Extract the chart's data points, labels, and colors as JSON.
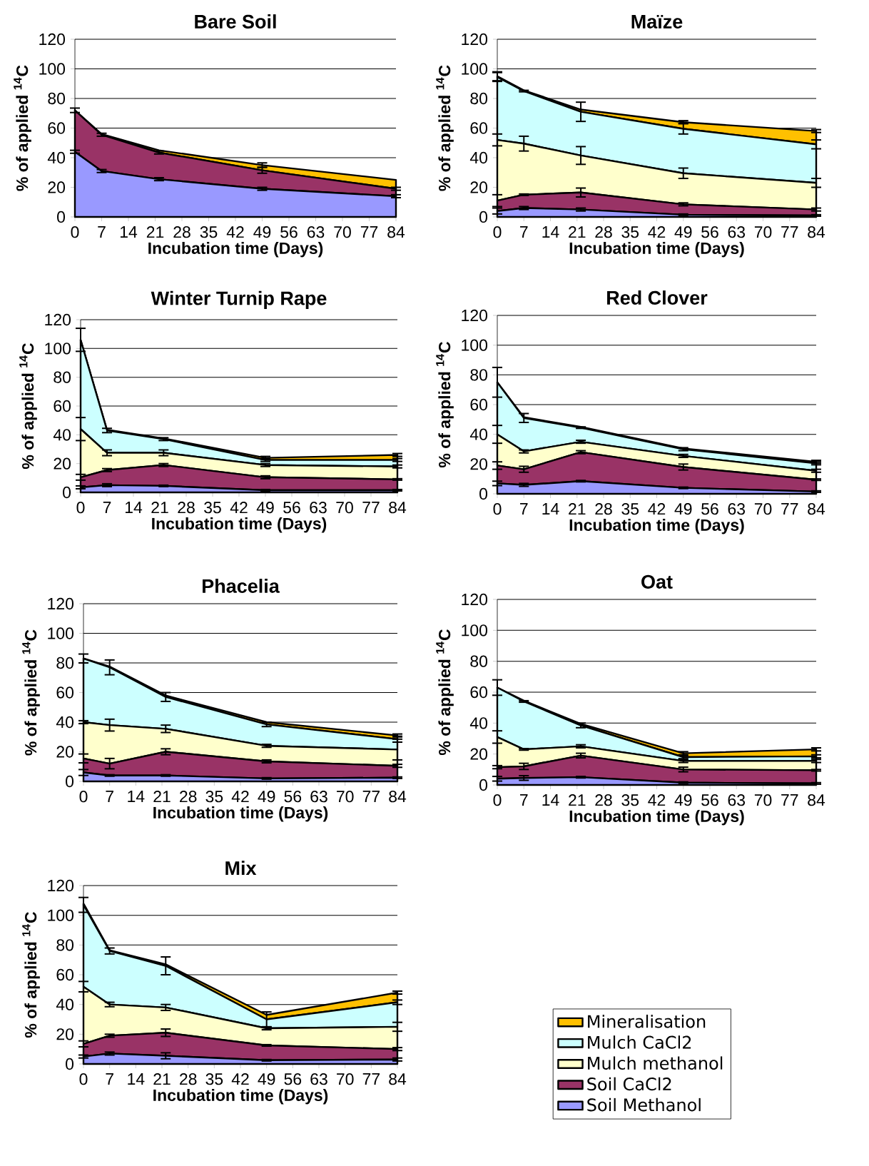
{
  "chart_data": [
    {
      "type": "area",
      "stacked": true,
      "title": "Bare Soil",
      "xlabel": "Incubation time (Days)",
      "ylabel": "% of applied $^{14}$C",
      "x": [
        0,
        7,
        22,
        49,
        84
      ],
      "xlim": [
        0,
        84
      ],
      "xticks": [
        0,
        7,
        14,
        21,
        28,
        35,
        42,
        49,
        56,
        63,
        70,
        77,
        84
      ],
      "ylim": [
        0,
        120
      ],
      "yticks": [
        0,
        20,
        40,
        60,
        80,
        100,
        120
      ],
      "grid": "y",
      "series": [
        {
          "color": "#9999ff",
          "values": [
            44,
            31,
            25.5,
            19,
            14
          ],
          "errors": [
            1,
            1,
            1,
            1,
            1
          ]
        },
        {
          "color": "#993366",
          "values": [
            28,
            24.5,
            18,
            12.5,
            5
          ],
          "errors": [
            1.5,
            1,
            1,
            2,
            1
          ]
        },
        {
          "color": "#ffc000",
          "values": [
            0,
            0.5,
            1.5,
            3.5,
            6
          ],
          "errors": [
            null,
            null,
            null,
            1.5,
            null
          ]
        }
      ]
    },
    {
      "type": "area",
      "stacked": true,
      "title": "Maïze",
      "xlabel": "Incubation time (Days)",
      "ylabel": "% of applied $^{14}$C",
      "x": [
        0,
        7,
        22,
        49,
        84
      ],
      "xlim": [
        0,
        84
      ],
      "xticks": [
        0,
        7,
        14,
        21,
        28,
        35,
        42,
        49,
        56,
        63,
        70,
        77,
        84
      ],
      "ylim": [
        0,
        120
      ],
      "yticks": [
        0,
        20,
        40,
        60,
        80,
        100,
        120
      ],
      "grid": "y",
      "series": [
        {
          "color": "#9999ff",
          "values": [
            4,
            6,
            5,
            1.5,
            1
          ],
          "errors": [
            2,
            1,
            1,
            0.5,
            0.5
          ]
        },
        {
          "color": "#993366",
          "values": [
            7,
            9,
            11.5,
            7,
            4
          ],
          "errors": [
            4,
            0.5,
            3,
            1,
            1
          ]
        },
        {
          "color": "#ffffcc",
          "values": [
            41,
            34.5,
            25,
            21,
            18
          ],
          "errors": [
            4,
            5,
            6,
            3.5,
            3
          ]
        },
        {
          "color": "#ccffff",
          "values": [
            42.5,
            35.5,
            29.5,
            30,
            26
          ],
          "errors": [
            3,
            0.5,
            6.5,
            3.5,
            3
          ]
        },
        {
          "color": "#ffc000",
          "values": [
            0.5,
            0.5,
            1.5,
            4.5,
            9
          ],
          "errors": [
            3,
            null,
            null,
            1,
            1
          ]
        }
      ]
    },
    {
      "type": "area",
      "stacked": true,
      "title": "Winter Turnip Rape",
      "xlabel": "Incubation time (Days)",
      "ylabel": "% of applied $^{14}$C",
      "x": [
        0,
        7,
        22,
        49,
        84
      ],
      "xlim": [
        0,
        84
      ],
      "xticks": [
        0,
        7,
        14,
        21,
        28,
        35,
        42,
        49,
        56,
        63,
        70,
        77,
        84
      ],
      "ylim": [
        0,
        120
      ],
      "yticks": [
        0,
        20,
        40,
        60,
        80,
        100,
        120
      ],
      "grid": "y",
      "series": [
        {
          "color": "#9999ff",
          "values": [
            3.5,
            5,
            4.5,
            1.5,
            1.5
          ],
          "errors": [
            1,
            1,
            0.5,
            0.5,
            0.5
          ]
        },
        {
          "color": "#993366",
          "values": [
            7,
            10.5,
            14.5,
            9,
            7.5
          ],
          "errors": [
            2,
            1,
            1,
            1,
            0.5
          ]
        },
        {
          "color": "#ffffcc",
          "values": [
            33.5,
            12,
            8.5,
            8.5,
            9
          ],
          "errors": [
            8,
            2,
            2,
            1,
            1
          ]
        },
        {
          "color": "#ccffff",
          "values": [
            62,
            15.5,
            9.5,
            3.5,
            4.5
          ],
          "errors": [
            8,
            1.5,
            1,
            1,
            1
          ]
        },
        {
          "color": "#ffc000",
          "values": [
            0,
            0.5,
            0.5,
            1.5,
            3.5
          ],
          "errors": [
            null,
            null,
            null,
            1,
            1
          ]
        }
      ]
    },
    {
      "type": "area",
      "stacked": true,
      "title": "Red Clover",
      "xlabel": "Incubation time (Days)",
      "ylabel": "% of applied $^{14}$C",
      "x": [
        0,
        7,
        22,
        49,
        84
      ],
      "xlim": [
        0,
        84
      ],
      "xticks": [
        0,
        7,
        14,
        21,
        28,
        35,
        42,
        49,
        56,
        63,
        70,
        77,
        84
      ],
      "ylim": [
        0,
        120
      ],
      "yticks": [
        0,
        20,
        40,
        60,
        80,
        100,
        120
      ],
      "grid": "y",
      "series": [
        {
          "color": "#9999ff",
          "values": [
            7,
            6,
            8.5,
            4,
            1.5
          ],
          "errors": [
            1.5,
            1,
            0.5,
            0.5,
            0.5
          ]
        },
        {
          "color": "#993366",
          "values": [
            12,
            10.5,
            19.5,
            14,
            8
          ],
          "errors": [
            2.5,
            2,
            1,
            2,
            0.5
          ]
        },
        {
          "color": "#ffffcc",
          "values": [
            21,
            12,
            7,
            7.5,
            6
          ],
          "errors": [
            6,
            1,
            1,
            1,
            1
          ]
        },
        {
          "color": "#ccffff",
          "values": [
            35,
            22.5,
            9.5,
            4.5,
            5
          ],
          "errors": [
            10,
            3,
            0.5,
            1,
            1
          ]
        },
        {
          "color": "#ffc000",
          "values": [
            0,
            0.5,
            0.5,
            0.5,
            1
          ],
          "errors": [
            null,
            null,
            null,
            null,
            1
          ]
        }
      ]
    },
    {
      "type": "area",
      "stacked": true,
      "title": "Phacelia",
      "xlabel": "Incubation time (Days)",
      "ylabel": "% of applied $^{14}$C",
      "x": [
        0,
        7,
        22,
        49,
        84
      ],
      "xlim": [
        0,
        84
      ],
      "xticks": [
        0,
        7,
        14,
        21,
        28,
        35,
        42,
        49,
        56,
        63,
        70,
        77,
        84
      ],
      "ylim": [
        0,
        120
      ],
      "yticks": [
        0,
        20,
        40,
        60,
        80,
        100,
        120
      ],
      "grid": "y",
      "series": [
        {
          "color": "#9999ff",
          "values": [
            6,
            4,
            4,
            2,
            2.5
          ],
          "errors": [
            2,
            0.5,
            0.5,
            0.5,
            0.5
          ]
        },
        {
          "color": "#993366",
          "values": [
            9.5,
            8,
            16,
            11.5,
            8
          ],
          "errors": [
            3,
            3.5,
            2,
            1,
            1
          ]
        },
        {
          "color": "#ffffcc",
          "values": [
            24.5,
            26,
            15.5,
            10.5,
            11
          ],
          "errors": [
            1,
            4,
            2.5,
            1,
            7
          ]
        },
        {
          "color": "#ccffff",
          "values": [
            43,
            39,
            21.5,
            14.5,
            7
          ],
          "errors": [
            3,
            5,
            3,
            1.5,
            2
          ]
        },
        {
          "color": "#ffc000",
          "values": [
            0,
            0.5,
            1,
            1.5,
            2.5
          ],
          "errors": [
            null,
            null,
            null,
            null,
            1
          ]
        }
      ]
    },
    {
      "type": "area",
      "stacked": true,
      "title": "Oat",
      "xlabel": "Incubation time (Days)",
      "ylabel": "% of applied $^{14}$C",
      "x": [
        0,
        7,
        22,
        49,
        84
      ],
      "xlim": [
        0,
        84
      ],
      "xticks": [
        0,
        7,
        14,
        21,
        28,
        35,
        42,
        49,
        56,
        63,
        70,
        77,
        84
      ],
      "ylim": [
        0,
        120
      ],
      "yticks": [
        0,
        20,
        40,
        60,
        80,
        100,
        120
      ],
      "grid": "y",
      "series": [
        {
          "color": "#9999ff",
          "values": [
            4,
            4.5,
            5,
            1.5,
            1
          ],
          "errors": [
            1.5,
            1.5,
            0.5,
            0.5,
            0.5
          ]
        },
        {
          "color": "#993366",
          "values": [
            7.5,
            7.5,
            14,
            8.5,
            8.5
          ],
          "errors": [
            1,
            2,
            1.5,
            1.5,
            0.5
          ]
        },
        {
          "color": "#ffffcc",
          "values": [
            19.5,
            11,
            6,
            5.5,
            6
          ],
          "errors": [
            4,
            0.5,
            1,
            1,
            1
          ]
        },
        {
          "color": "#ccffff",
          "values": [
            32,
            31,
            13.5,
            2.5,
            3
          ],
          "errors": [
            5,
            0.5,
            1.5,
            1,
            1
          ]
        },
        {
          "color": "#ffc000",
          "values": [
            0,
            0.5,
            1,
            2.5,
            4.5
          ],
          "errors": [
            null,
            null,
            null,
            1,
            1
          ]
        }
      ]
    },
    {
      "type": "area",
      "stacked": true,
      "title": "Mix",
      "xlabel": "Incubation time (Days)",
      "ylabel": "% of applied $^{14}$C",
      "x": [
        0,
        7,
        22,
        49,
        84
      ],
      "xlim": [
        0,
        84
      ],
      "xticks": [
        0,
        7,
        14,
        21,
        28,
        35,
        42,
        49,
        56,
        63,
        70,
        77,
        84
      ],
      "ylim": [
        0,
        120
      ],
      "yticks": [
        0,
        20,
        40,
        60,
        80,
        100,
        120
      ],
      "grid": "y",
      "legend": "right",
      "series": [
        {
          "name": "Soil Methanol",
          "color": "#9999ff",
          "values": [
            5,
            7,
            5.5,
            2.5,
            3
          ],
          "errors": [
            1,
            1,
            2,
            0.5,
            1
          ]
        },
        {
          "name": "Soil CaCl2",
          "color": "#993366",
          "values": [
            8.5,
            12,
            15.5,
            10,
            7
          ],
          "errors": [
            2,
            1,
            2.5,
            0.5,
            1
          ]
        },
        {
          "name": "Mulch methanol",
          "color": "#ffffcc",
          "values": [
            38.5,
            21,
            17,
            11.5,
            15
          ],
          "errors": [
            3.5,
            1.5,
            2,
            1,
            3
          ]
        },
        {
          "name": "Mulch CaCl2",
          "color": "#ccffff",
          "values": [
            55,
            36,
            28,
            6,
            16.5
          ],
          "errors": [
            5,
            2,
            6,
            5,
            1.5
          ]
        },
        {
          "name": "Mineralisation",
          "color": "#ffc000",
          "values": [
            1,
            0.5,
            1,
            3,
            6.5
          ],
          "errors": [
            null,
            null,
            null,
            null,
            1
          ]
        }
      ]
    }
  ]
}
